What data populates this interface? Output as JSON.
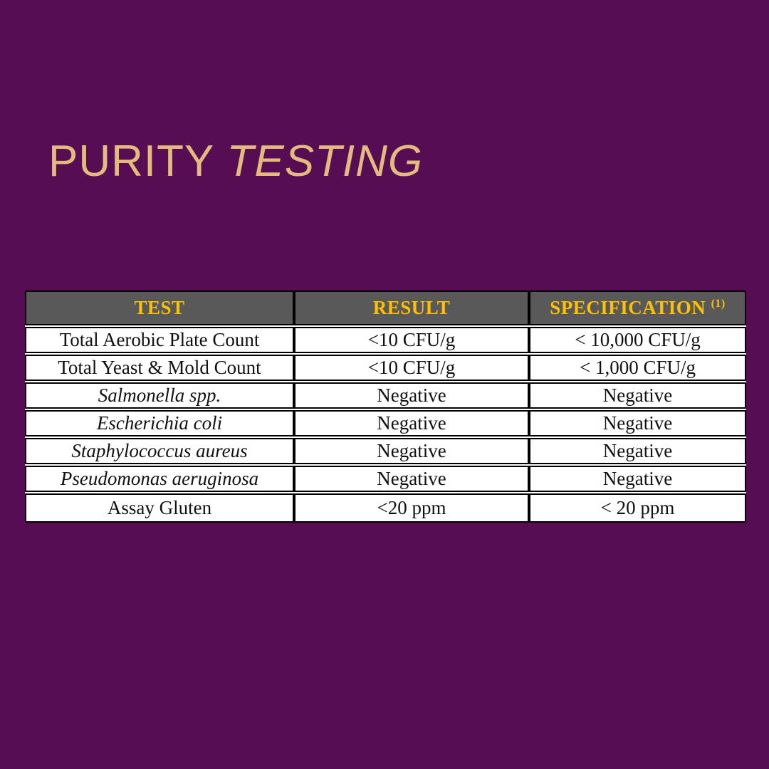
{
  "page": {
    "background_color": "#570d53",
    "title": {
      "part1": "PURITY ",
      "part2": "TESTING",
      "color": "#e3bb7d"
    }
  },
  "table": {
    "header_bg_color": "#595959",
    "header_text_color": "#ffc000",
    "border_color": "#000000",
    "columns": [
      {
        "key": "test",
        "label": "TEST",
        "superscript": ""
      },
      {
        "key": "result",
        "label": "RESULT",
        "superscript": ""
      },
      {
        "key": "specification",
        "label": "SPECIFICATION",
        "superscript": "(1)"
      }
    ],
    "rows": [
      {
        "test": "Total Aerobic Plate Count",
        "test_italic": false,
        "result": "<10 CFU/g",
        "specification": "< 10,000 CFU/g"
      },
      {
        "test": "Total Yeast & Mold Count",
        "test_italic": false,
        "result": "<10 CFU/g",
        "specification": "< 1,000 CFU/g"
      },
      {
        "test": "Salmonella spp.",
        "test_italic": true,
        "result": "Negative",
        "specification": "Negative"
      },
      {
        "test": "Escherichia coli",
        "test_italic": true,
        "result": "Negative",
        "specification": "Negative"
      },
      {
        "test": "Staphylococcus aureus",
        "test_italic": true,
        "result": "Negative",
        "specification": "Negative"
      },
      {
        "test": "Pseudomonas aeruginosa",
        "test_italic": true,
        "result": "Negative",
        "specification": "Negative"
      },
      {
        "test": "Assay Gluten",
        "test_italic": false,
        "result": "<20 ppm",
        "specification": "< 20 ppm"
      }
    ]
  }
}
